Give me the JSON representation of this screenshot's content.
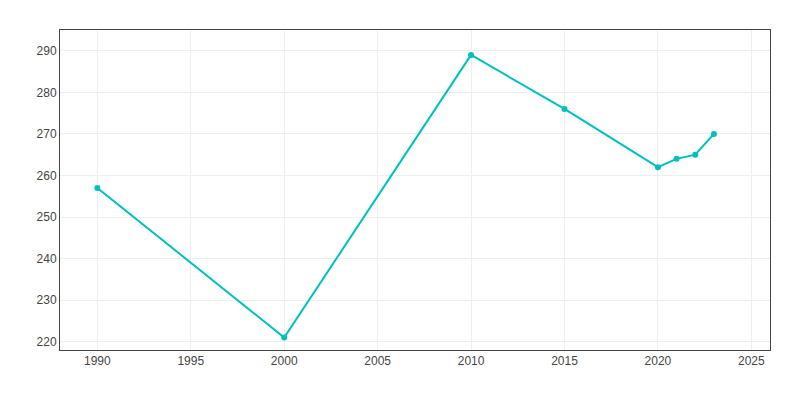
{
  "chart_data": {
    "type": "line",
    "x": [
      1990,
      2000,
      2010,
      2015,
      2020,
      2021,
      2022,
      2023
    ],
    "values": [
      257,
      221,
      289,
      276,
      262,
      264,
      265,
      270
    ],
    "color": "#00BFBF",
    "marker": "o",
    "xlim": [
      1988,
      2026
    ],
    "ylim": [
      218,
      295
    ],
    "xticks": [
      1990,
      1995,
      2000,
      2005,
      2010,
      2015,
      2020,
      2025
    ],
    "yticks": [
      220,
      230,
      240,
      250,
      260,
      270,
      280,
      290
    ],
    "grid": true
  }
}
